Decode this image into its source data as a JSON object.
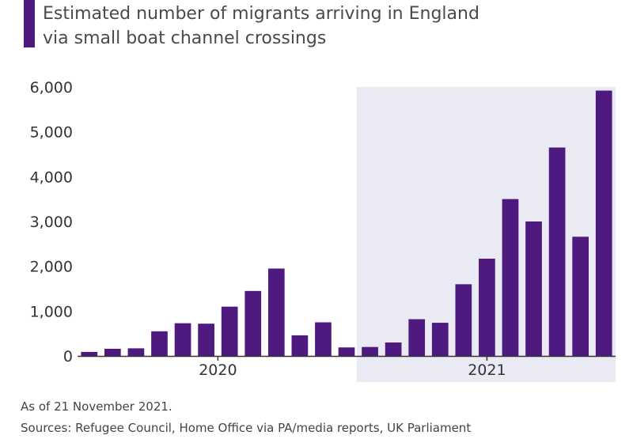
{
  "title_lines": [
    "Estimated number of migrants arriving in England",
    "via small boat channel crossings"
  ],
  "note": "As of 21 November 2021.",
  "sources": "Sources: Refugee Council, Home Office via PA/media reports, UK Parliament",
  "colors": {
    "bar": "#4f1a7f",
    "highlight_band": "#e9eaf4",
    "axis": "#333333"
  },
  "chart_data": {
    "type": "bar",
    "title": "Estimated number of migrants arriving in England via small boat channel crossings",
    "categories": [
      "2020-01",
      "2020-02",
      "2020-03",
      "2020-04",
      "2020-05",
      "2020-06",
      "2020-07",
      "2020-08",
      "2020-09",
      "2020-10",
      "2020-11",
      "2020-12",
      "2021-01",
      "2021-02",
      "2021-03",
      "2021-04",
      "2021-05",
      "2021-06",
      "2021-07",
      "2021-08",
      "2021-09",
      "2021-10",
      "2021-11"
    ],
    "values": [
      90,
      160,
      170,
      550,
      730,
      720,
      1100,
      1450,
      1950,
      460,
      750,
      190,
      200,
      300,
      820,
      740,
      1600,
      2170,
      3500,
      3000,
      4650,
      2660,
      5920
    ],
    "year_groups": [
      {
        "label": "2020",
        "months": 12,
        "highlighted": false
      },
      {
        "label": "2021",
        "months": 11,
        "highlighted": true
      }
    ],
    "yticks": [
      0,
      1000,
      2000,
      3000,
      4000,
      5000,
      6000
    ],
    "ytick_labels": [
      "0",
      "1,000",
      "2,000",
      "3,000",
      "4,000",
      "5,000",
      "6,000"
    ],
    "ylim": [
      0,
      6000
    ],
    "grid": true
  }
}
